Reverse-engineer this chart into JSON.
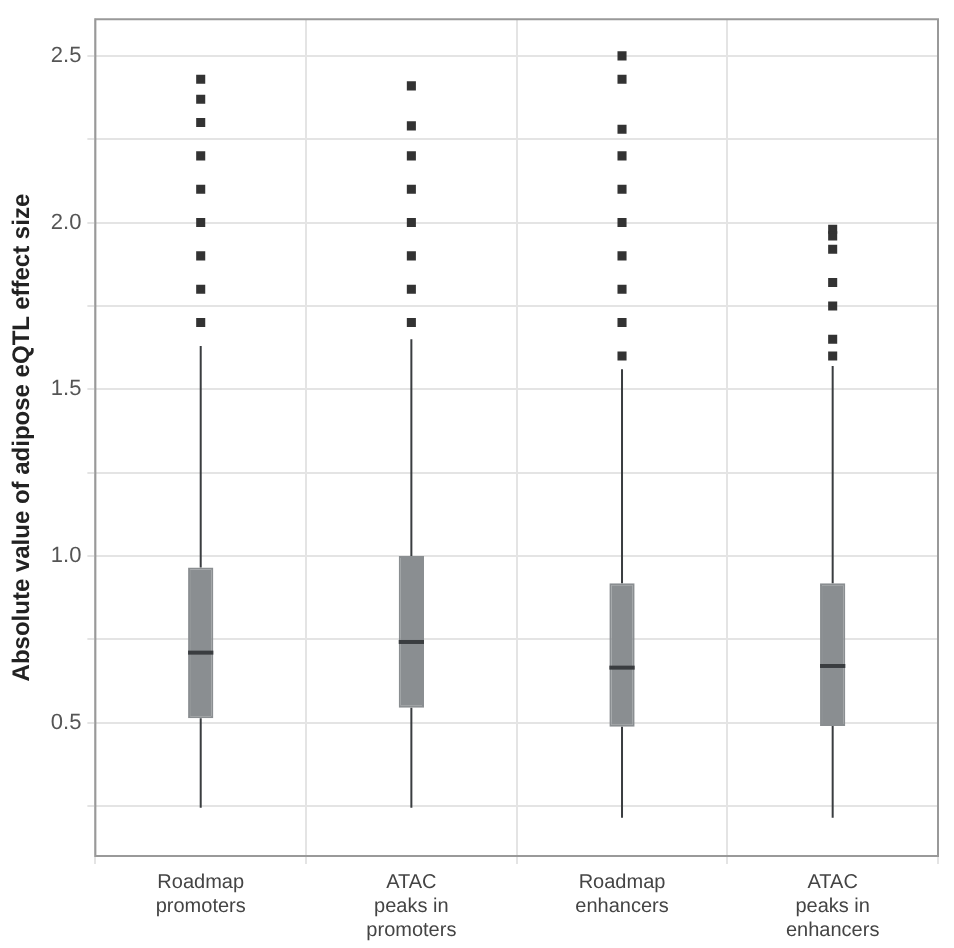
{
  "chart_data": {
    "type": "box",
    "ylabel": "Absolute value of adipose eQTL effect size",
    "categories": [
      "Roadmap promoters",
      "ATAC peaks in promoters",
      "Roadmap enhancers",
      "ATAC peaks in enhancers"
    ],
    "color": "#8a8e91",
    "boxes": [
      {
        "low": 0.245,
        "q1": 0.513,
        "median": 0.71,
        "q3": 0.965,
        "high": 1.63,
        "outliers": [
          1.7,
          1.8,
          1.9,
          2.0,
          2.1,
          2.2,
          2.3,
          2.37,
          2.43
        ]
      },
      {
        "low": 0.245,
        "q1": 0.545,
        "median": 0.742,
        "q3": 1.0,
        "high": 1.65,
        "outliers": [
          1.7,
          1.8,
          1.9,
          2.0,
          2.1,
          2.2,
          2.29,
          2.41
        ]
      },
      {
        "low": 0.215,
        "q1": 0.488,
        "median": 0.665,
        "q3": 0.918,
        "high": 1.56,
        "outliers": [
          1.6,
          1.7,
          1.8,
          1.9,
          2.0,
          2.1,
          2.2,
          2.28,
          2.43,
          2.5
        ]
      },
      {
        "low": 0.215,
        "q1": 0.49,
        "median": 0.67,
        "q3": 0.918,
        "high": 1.57,
        "outliers": [
          1.6,
          1.65,
          1.75,
          1.82,
          1.92,
          1.96,
          1.98
        ]
      }
    ],
    "ylim": [
      0.1,
      2.61
    ],
    "yticks": [
      {
        "value": 0.25,
        "label": null
      },
      0.5,
      {
        "value": 0.75,
        "label": null
      },
      {
        "value": 1,
        "label": "1.0"
      },
      {
        "value": 1.25,
        "label": null
      },
      1.5,
      {
        "value": 1.75,
        "label": null
      },
      {
        "value": 2,
        "label": "2.0"
      },
      {
        "value": 2.25,
        "label": null
      },
      2.5
    ],
    "grid": true,
    "marker": "square"
  }
}
